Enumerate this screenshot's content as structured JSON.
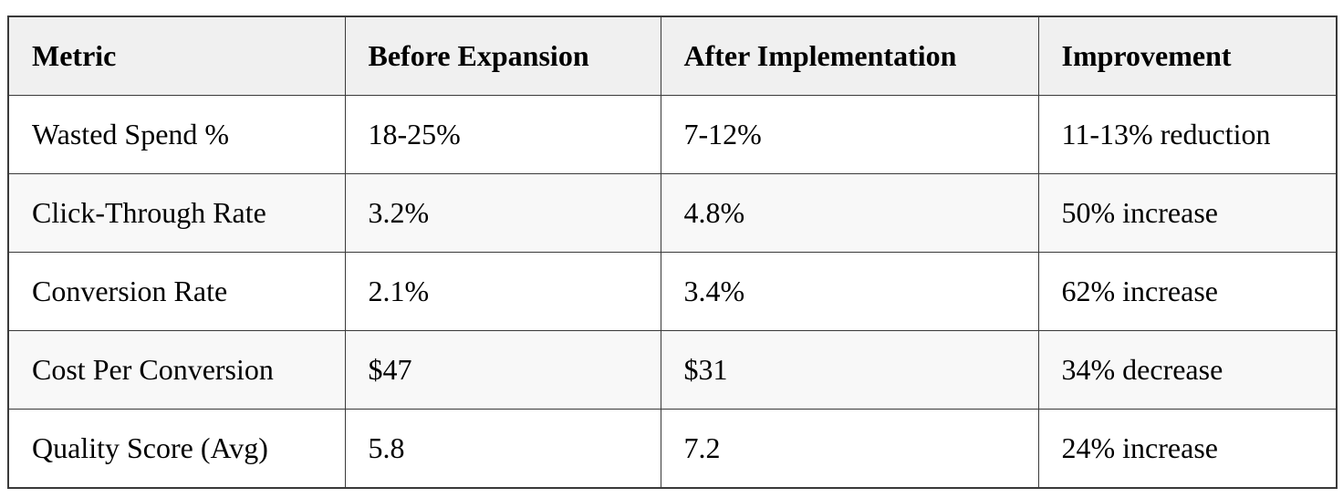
{
  "chart_data": {
    "type": "table",
    "columns": [
      "Metric",
      "Before Expansion",
      "After Implementation",
      "Improvement"
    ],
    "rows": [
      [
        "Wasted Spend %",
        "18-25%",
        "7-12%",
        "11-13% reduction"
      ],
      [
        "Click-Through Rate",
        "3.2%",
        "4.8%",
        "50% increase"
      ],
      [
        "Conversion Rate",
        "2.1%",
        "3.4%",
        "62% increase"
      ],
      [
        "Cost Per Conversion",
        "$47",
        "$31",
        "34% decrease"
      ],
      [
        "Quality Score (Avg)",
        "5.8",
        "7.2",
        "24% increase"
      ]
    ],
    "title": "",
    "layout_hints": {
      "header_row_shaded": true,
      "zebra_striping": true,
      "text_align": "left"
    }
  },
  "colors": {
    "header_bg": "#f0f0f0",
    "stripe_bg": "#f8f8f8",
    "row_bg": "#ffffff",
    "border": "#3a3a3a",
    "text": "#000000"
  }
}
